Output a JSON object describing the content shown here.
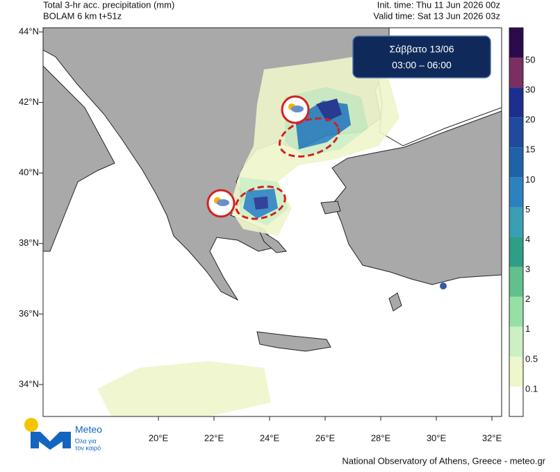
{
  "header": {
    "title": "Total 3-hr acc. precipitation (mm)",
    "model": "BOLAM 6 km t+51z",
    "init_time": "Init. time: Thu 11 Jun 2026 00z",
    "valid_time": "Valid time: Sat 13 Jun 2026 03z"
  },
  "badge": {
    "day": "Σάββατο 13/06",
    "hours": "03:00 – 06:00"
  },
  "lat_labels": [
    "44°N",
    "42°N",
    "40°N",
    "38°N",
    "36°N",
    "34°N"
  ],
  "lon_labels": [
    "20°E",
    "22°E",
    "24°E",
    "26°E",
    "28°E",
    "30°E",
    "32°E"
  ],
  "colorbar": {
    "labels": [
      "50",
      "30",
      "20",
      "15",
      "10",
      "5",
      "4",
      "3",
      "2",
      "1",
      "0.5",
      "0.1"
    ],
    "colors": [
      "#2b0b4d",
      "#7b2f60",
      "#1c2f8f",
      "#1f4a9e",
      "#1f62a8",
      "#2b82bf",
      "#3a9fb4",
      "#2f9e86",
      "#62c08c",
      "#96e0a6",
      "#cdefc4",
      "#eef6cb",
      "#ffffff"
    ]
  },
  "logo": {
    "name": "Meteo",
    "tagline_1": "Όλα για",
    "tagline_2": "τον καιρό"
  },
  "footer": "National Observatory of Athens, Greece - meteo.gr"
}
